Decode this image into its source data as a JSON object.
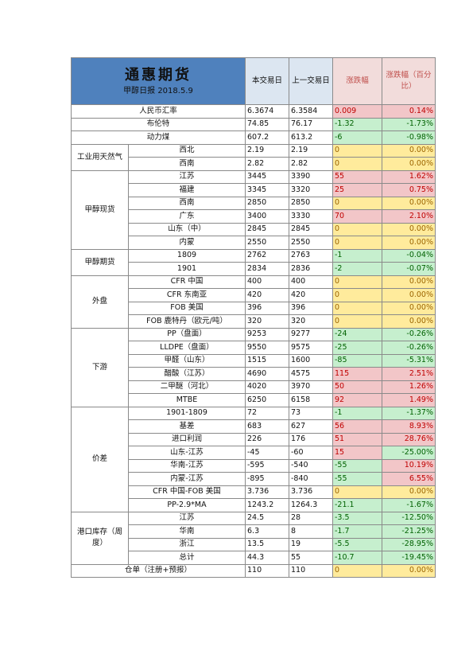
{
  "title": "通惠期货",
  "subtitle": "甲醇日报 2018.5.9",
  "headers": {
    "today": "本交易日",
    "prev": "上一交易日",
    "change": "涨跌幅",
    "change_pct": "涨跌幅（百分比）"
  },
  "rows": [
    {
      "label": "人民币汇率",
      "today": "6.3674",
      "prev": "6.3584",
      "chg": "0.009",
      "pct": "0.14%",
      "trend": "up"
    },
    {
      "label": "布伦特",
      "today": "74.85",
      "prev": "76.17",
      "chg": "-1.32",
      "pct": "-1.73%",
      "trend": "down"
    },
    {
      "label": "动力煤",
      "today": "607.2",
      "prev": "613.2",
      "chg": "-6",
      "pct": "-0.98%",
      "trend": "down"
    },
    {
      "group": "工业用天然气",
      "label": "西北",
      "today": "2.19",
      "prev": "2.19",
      "chg": "0",
      "pct": "0.00%",
      "trend": "flat"
    },
    {
      "label": "西南",
      "today": "2.82",
      "prev": "2.82",
      "chg": "0",
      "pct": "0.00%",
      "trend": "flat"
    },
    {
      "group": "甲醇现货",
      "label": "江苏",
      "today": "3445",
      "prev": "3390",
      "chg": "55",
      "pct": "1.62%",
      "trend": "up"
    },
    {
      "label": "福建",
      "today": "3345",
      "prev": "3320",
      "chg": "25",
      "pct": "0.75%",
      "trend": "up"
    },
    {
      "label": "西南",
      "today": "2850",
      "prev": "2850",
      "chg": "0",
      "pct": "0.00%",
      "trend": "flat"
    },
    {
      "label": "广东",
      "today": "3400",
      "prev": "3330",
      "chg": "70",
      "pct": "2.10%",
      "trend": "up"
    },
    {
      "label": "山东（中）",
      "today": "2845",
      "prev": "2845",
      "chg": "0",
      "pct": "0.00%",
      "trend": "flat"
    },
    {
      "label": "内蒙",
      "today": "2550",
      "prev": "2550",
      "chg": "0",
      "pct": "0.00%",
      "trend": "flat"
    },
    {
      "group": "甲醇期货",
      "label": "1809",
      "today": "2762",
      "prev": "2763",
      "chg": "-1",
      "pct": "-0.04%",
      "trend": "down"
    },
    {
      "label": "1901",
      "today": "2834",
      "prev": "2836",
      "chg": "-2",
      "pct": "-0.07%",
      "trend": "down"
    },
    {
      "group": "外盘",
      "label": "CFR 中国",
      "today": "400",
      "prev": "400",
      "chg": "0",
      "pct": "0.00%",
      "trend": "flat"
    },
    {
      "label": "CFR 东南亚",
      "today": "420",
      "prev": "420",
      "chg": "0",
      "pct": "0.00%",
      "trend": "flat"
    },
    {
      "label": "FOB 美国",
      "today": "396",
      "prev": "396",
      "chg": "0",
      "pct": "0.00%",
      "trend": "flat"
    },
    {
      "label": "FOB 鹿特丹（欧元/吨）",
      "today": "320",
      "prev": "320",
      "chg": "0",
      "pct": "0.00%",
      "trend": "flat"
    },
    {
      "group": "下游",
      "label": "PP（盘面）",
      "today": "9253",
      "prev": "9277",
      "chg": "-24",
      "pct": "-0.26%",
      "trend": "down"
    },
    {
      "label": "LLDPE（盘面）",
      "today": "9550",
      "prev": "9575",
      "chg": "-25",
      "pct": "-0.26%",
      "trend": "down"
    },
    {
      "label": "甲醛（山东）",
      "today": "1515",
      "prev": "1600",
      "chg": "-85",
      "pct": "-5.31%",
      "trend": "down"
    },
    {
      "label": "醋酸（江苏）",
      "today": "4690",
      "prev": "4575",
      "chg": "115",
      "pct": "2.51%",
      "trend": "up"
    },
    {
      "label": "二甲醚（河北）",
      "today": "4020",
      "prev": "3970",
      "chg": "50",
      "pct": "1.26%",
      "trend": "up"
    },
    {
      "label": "MTBE",
      "today": "6250",
      "prev": "6158",
      "chg": "92",
      "pct": "1.49%",
      "trend": "up"
    },
    {
      "group": "价差",
      "label": "1901-1809",
      "today": "72",
      "prev": "73",
      "chg": "-1",
      "pct": "-1.37%",
      "trend": "down"
    },
    {
      "label": "基差",
      "today": "683",
      "prev": "627",
      "chg": "56",
      "pct": "8.93%",
      "trend": "up"
    },
    {
      "label": "进口利润",
      "today": "226",
      "prev": "176",
      "chg": "51",
      "pct": "28.76%",
      "trend": "up"
    },
    {
      "label": "山东-江苏",
      "today": "-45",
      "prev": "-60",
      "chg": "15",
      "pct": "-25.00%",
      "trend": "up",
      "pct_trend": "down"
    },
    {
      "label": "华南-江苏",
      "today": "-595",
      "prev": "-540",
      "chg": "-55",
      "pct": "10.19%",
      "trend": "down",
      "pct_trend": "up"
    },
    {
      "label": "内蒙-江苏",
      "today": "-895",
      "prev": "-840",
      "chg": "-55",
      "pct": "6.55%",
      "trend": "down",
      "pct_trend": "up"
    },
    {
      "label": "CFR 中国-FOB 美国",
      "today": "3.736",
      "prev": "3.736",
      "chg": "0",
      "pct": "0.00%",
      "trend": "flat"
    },
    {
      "label": "PP-2.9*MA",
      "today": "1243.2",
      "prev": "1264.3",
      "chg": "-21.1",
      "pct": "-1.67%",
      "trend": "down"
    },
    {
      "group": "港口库存（周度）",
      "label": "江苏",
      "today": "24.5",
      "prev": "28",
      "chg": "-3.5",
      "pct": "-12.50%",
      "trend": "down"
    },
    {
      "label": "华南",
      "today": "6.3",
      "prev": "8",
      "chg": "-1.7",
      "pct": "-21.25%",
      "trend": "down"
    },
    {
      "label": "浙江",
      "today": "13.5",
      "prev": "19",
      "chg": "-5.5",
      "pct": "-28.95%",
      "trend": "down"
    },
    {
      "label": "总计",
      "today": "44.3",
      "prev": "55",
      "chg": "-10.7",
      "pct": "-19.45%",
      "trend": "down"
    },
    {
      "label": "仓单（注册+预报）",
      "today": "110",
      "prev": "110",
      "chg": "0",
      "pct": "0.00%",
      "trend": "flat"
    }
  ],
  "colors": {
    "title_bg": "#4f81bd",
    "up": "#f2c6c8",
    "down": "#c6efce",
    "flat": "#ffeb9c"
  }
}
